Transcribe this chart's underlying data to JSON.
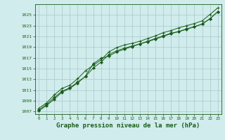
{
  "background_color": "#d0ecec",
  "grid_color": "#b0cccc",
  "line_color": "#1a5c1a",
  "marker_color": "#1a5c1a",
  "title": "Graphe pression niveau de la mer (hPa)",
  "title_fontsize": 6.5,
  "ylim": [
    1006.5,
    1027.0
  ],
  "xlim": [
    -0.5,
    23.5
  ],
  "yticks": [
    1007,
    1009,
    1011,
    1013,
    1015,
    1017,
    1019,
    1021,
    1023,
    1025
  ],
  "xticks": [
    0,
    1,
    2,
    3,
    4,
    5,
    6,
    7,
    8,
    9,
    10,
    11,
    12,
    13,
    14,
    15,
    16,
    17,
    18,
    19,
    20,
    21,
    22,
    23
  ],
  "series1": [
    1007.3,
    1008.3,
    1009.6,
    1010.8,
    1011.4,
    1012.5,
    1013.5,
    1015.1,
    1016.2,
    1017.6,
    1018.3,
    1018.8,
    1019.2,
    1019.6,
    1020.0,
    1020.5,
    1021.0,
    1021.5,
    1021.9,
    1022.4,
    1022.8,
    1023.3,
    1024.3,
    1025.6
  ],
  "series2": [
    1007.6,
    1008.6,
    1010.1,
    1011.3,
    1011.9,
    1013.1,
    1014.6,
    1015.6,
    1016.6,
    1018.1,
    1018.9,
    1019.4,
    1019.7,
    1020.1,
    1020.6,
    1021.1,
    1021.7,
    1022.1,
    1022.6,
    1023.0,
    1023.4,
    1023.9,
    1025.1,
    1026.3
  ],
  "series3": [
    1007.1,
    1008.1,
    1009.3,
    1010.6,
    1011.3,
    1012.3,
    1013.6,
    1015.9,
    1016.9,
    1017.3,
    1018.1,
    1018.6,
    1019.1,
    1019.6,
    1020.1,
    1020.6,
    1021.1,
    1021.6,
    1021.9,
    1022.3,
    1022.8,
    1023.3,
    1024.3,
    1025.6
  ]
}
